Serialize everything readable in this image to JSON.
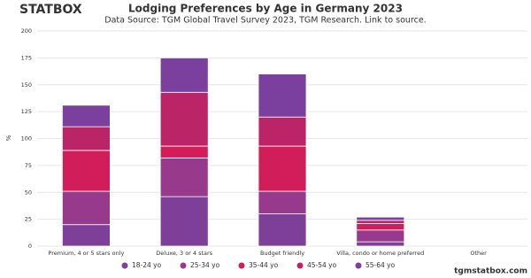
{
  "chart_data": {
    "type": "stacked_bar",
    "brand": "STATBOX",
    "title": "Lodging Preferences by Age in Germany 2023",
    "subtitle": "Data Source: TGM Global Travel Survey 2023, TGM Research. Link to source.",
    "ylabel": "%",
    "footer": "tgmstatbox.com",
    "categories": [
      "Premium, 4 or 5 stars only",
      "Deluxe, 3 or 4 stars",
      "Budget friendly",
      "Villa, condo or home preferred",
      "Other"
    ],
    "series": [
      {
        "name": "18-24 yo",
        "color": "#7e3f98",
        "values": [
          20,
          46,
          30,
          4,
          0
        ]
      },
      {
        "name": "25-34 yo",
        "color": "#983a8b",
        "values": [
          31,
          36,
          21,
          11,
          0
        ]
      },
      {
        "name": "35-44 yo",
        "color": "#d11e5b",
        "values": [
          38,
          11,
          42,
          6,
          0
        ]
      },
      {
        "name": "45-54 yo",
        "color": "#bc2468",
        "values": [
          22,
          50,
          27,
          3,
          0
        ]
      },
      {
        "name": "55-64 yo",
        "color": "#7b3f9e",
        "values": [
          20,
          32,
          40,
          3,
          0
        ]
      }
    ],
    "ylim": [
      0,
      200
    ],
    "yticks": [
      0,
      25,
      50,
      75,
      100,
      125,
      150,
      175,
      200
    ],
    "grid": true
  }
}
